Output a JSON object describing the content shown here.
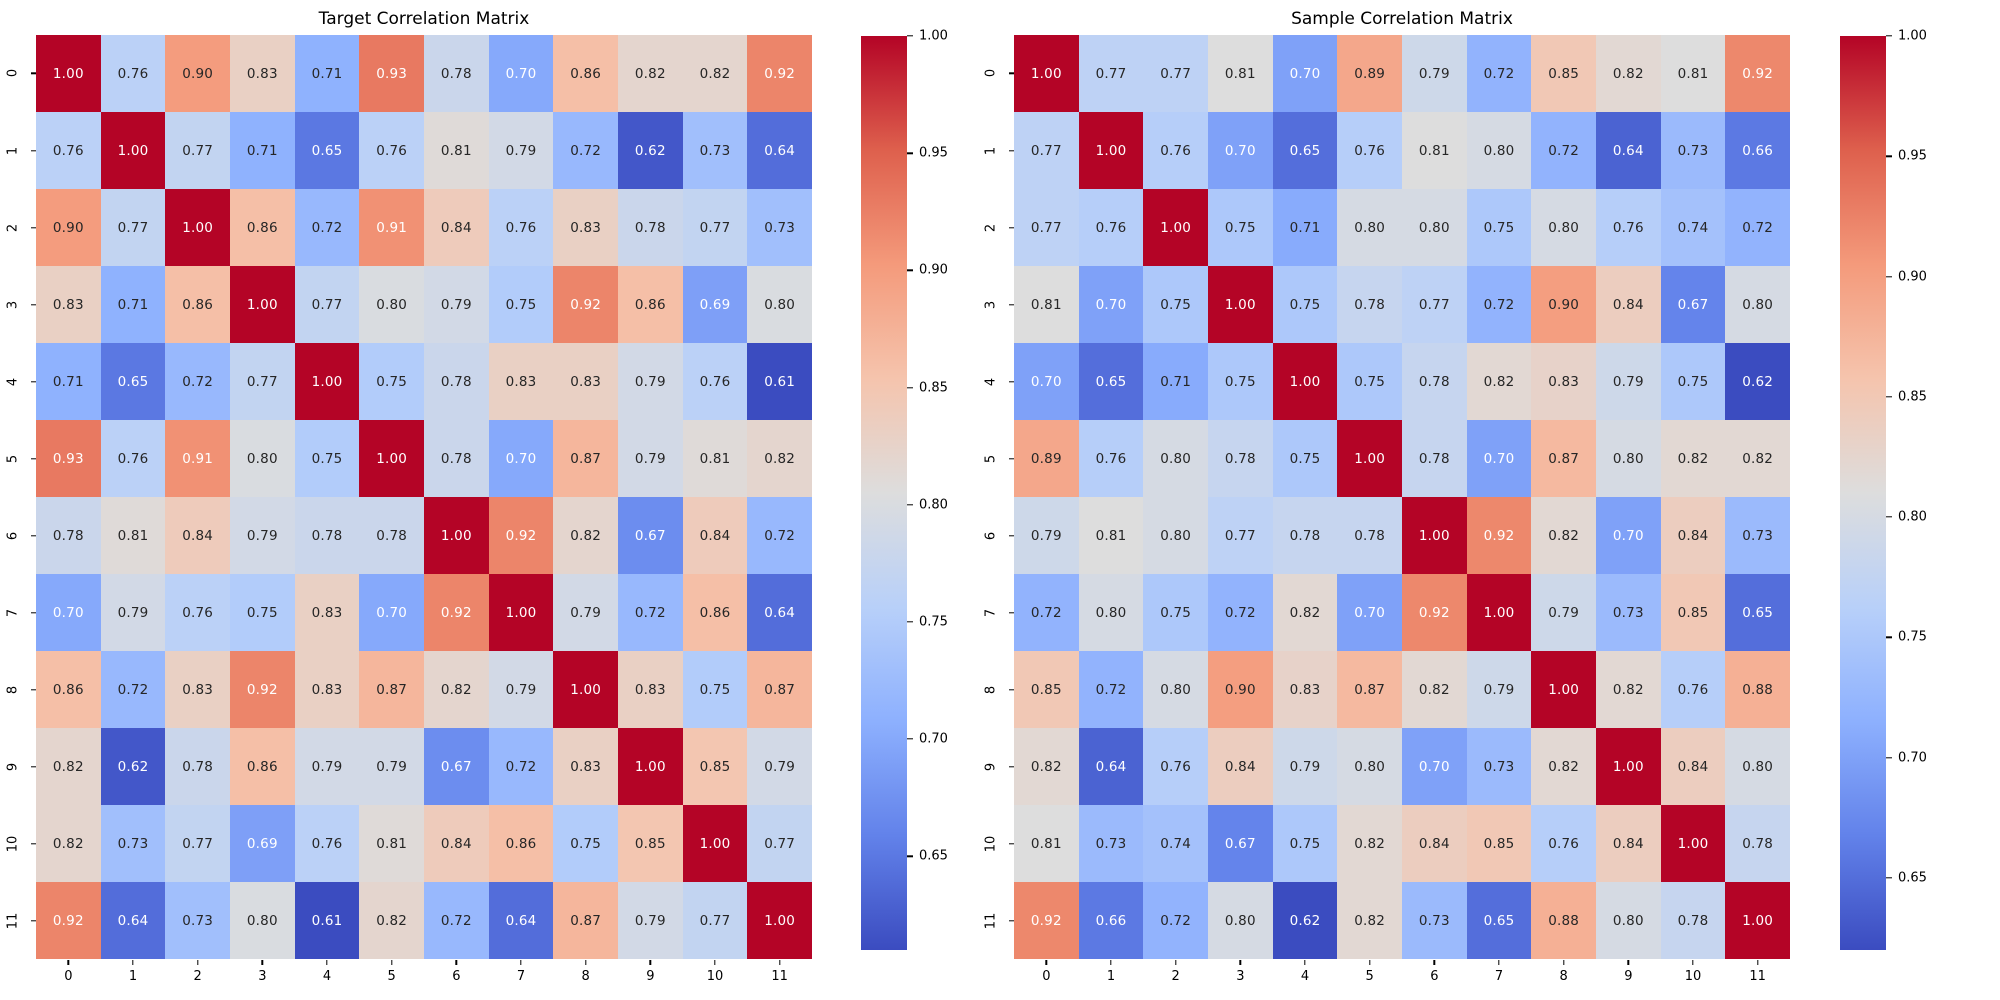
{
  "style": {
    "background": "#ffffff",
    "axis_text_color": "#000000",
    "annotation_dark": "#262626",
    "annotation_light": "#ffffff",
    "luminance_threshold": 0.408
  },
  "colormap": {
    "name": "coolwarm",
    "anchors": [
      "#3b4cc0",
      "#6282ea",
      "#8db0fe",
      "#b8d0f9",
      "#dddddd",
      "#f5c4ad",
      "#f49a7b",
      "#de604d",
      "#b40426"
    ]
  },
  "chart_data": [
    {
      "type": "heatmap",
      "title": "Target Correlation Matrix",
      "x_labels": [
        "0",
        "1",
        "2",
        "3",
        "4",
        "5",
        "6",
        "7",
        "8",
        "9",
        "10",
        "11"
      ],
      "y_labels": [
        "0",
        "1",
        "2",
        "3",
        "4",
        "5",
        "6",
        "7",
        "8",
        "9",
        "10",
        "11"
      ],
      "vmin": 0.61,
      "vmax": 1.0,
      "colorbar_ticks": [
        1.0,
        0.95,
        0.9,
        0.85,
        0.8,
        0.75,
        0.7,
        0.65
      ],
      "legend_position": "right-colorbar",
      "grid": false,
      "values": [
        [
          1.0,
          0.76,
          0.9,
          0.83,
          0.71,
          0.93,
          0.78,
          0.7,
          0.86,
          0.82,
          0.82,
          0.92
        ],
        [
          0.76,
          1.0,
          0.77,
          0.71,
          0.65,
          0.76,
          0.81,
          0.79,
          0.72,
          0.62,
          0.73,
          0.64
        ],
        [
          0.9,
          0.77,
          1.0,
          0.86,
          0.72,
          0.91,
          0.84,
          0.76,
          0.83,
          0.78,
          0.77,
          0.73
        ],
        [
          0.83,
          0.71,
          0.86,
          1.0,
          0.77,
          0.8,
          0.79,
          0.75,
          0.92,
          0.86,
          0.69,
          0.8
        ],
        [
          0.71,
          0.65,
          0.72,
          0.77,
          1.0,
          0.75,
          0.78,
          0.83,
          0.83,
          0.79,
          0.76,
          0.61
        ],
        [
          0.93,
          0.76,
          0.91,
          0.8,
          0.75,
          1.0,
          0.78,
          0.7,
          0.87,
          0.79,
          0.81,
          0.82
        ],
        [
          0.78,
          0.81,
          0.84,
          0.79,
          0.78,
          0.78,
          1.0,
          0.92,
          0.82,
          0.67,
          0.84,
          0.72
        ],
        [
          0.7,
          0.79,
          0.76,
          0.75,
          0.83,
          0.7,
          0.92,
          1.0,
          0.79,
          0.72,
          0.86,
          0.64
        ],
        [
          0.86,
          0.72,
          0.83,
          0.92,
          0.83,
          0.87,
          0.82,
          0.79,
          1.0,
          0.83,
          0.75,
          0.87
        ],
        [
          0.82,
          0.62,
          0.78,
          0.86,
          0.79,
          0.79,
          0.67,
          0.72,
          0.83,
          1.0,
          0.85,
          0.79
        ],
        [
          0.82,
          0.73,
          0.77,
          0.69,
          0.76,
          0.81,
          0.84,
          0.86,
          0.75,
          0.85,
          1.0,
          0.77
        ],
        [
          0.92,
          0.64,
          0.73,
          0.8,
          0.61,
          0.82,
          0.72,
          0.64,
          0.87,
          0.79,
          0.77,
          1.0
        ]
      ]
    },
    {
      "type": "heatmap",
      "title": "Sample Correlation Matrix",
      "x_labels": [
        "0",
        "1",
        "2",
        "3",
        "4",
        "5",
        "6",
        "7",
        "8",
        "9",
        "10",
        "11"
      ],
      "y_labels": [
        "0",
        "1",
        "2",
        "3",
        "4",
        "5",
        "6",
        "7",
        "8",
        "9",
        "10",
        "11"
      ],
      "vmin": 0.62,
      "vmax": 1.0,
      "colorbar_ticks": [
        1.0,
        0.95,
        0.9,
        0.85,
        0.8,
        0.75,
        0.7,
        0.65
      ],
      "legend_position": "right-colorbar",
      "grid": false,
      "values": [
        [
          1.0,
          0.77,
          0.77,
          0.81,
          0.7,
          0.89,
          0.79,
          0.72,
          0.85,
          0.82,
          0.81,
          0.92
        ],
        [
          0.77,
          1.0,
          0.76,
          0.7,
          0.65,
          0.76,
          0.81,
          0.8,
          0.72,
          0.64,
          0.73,
          0.66
        ],
        [
          0.77,
          0.76,
          1.0,
          0.75,
          0.71,
          0.8,
          0.8,
          0.75,
          0.8,
          0.76,
          0.74,
          0.72
        ],
        [
          0.81,
          0.7,
          0.75,
          1.0,
          0.75,
          0.78,
          0.77,
          0.72,
          0.9,
          0.84,
          0.67,
          0.8
        ],
        [
          0.7,
          0.65,
          0.71,
          0.75,
          1.0,
          0.75,
          0.78,
          0.82,
          0.83,
          0.79,
          0.75,
          0.62
        ],
        [
          0.89,
          0.76,
          0.8,
          0.78,
          0.75,
          1.0,
          0.78,
          0.7,
          0.87,
          0.8,
          0.82,
          0.82
        ],
        [
          0.79,
          0.81,
          0.8,
          0.77,
          0.78,
          0.78,
          1.0,
          0.92,
          0.82,
          0.7,
          0.84,
          0.73
        ],
        [
          0.72,
          0.8,
          0.75,
          0.72,
          0.82,
          0.7,
          0.92,
          1.0,
          0.79,
          0.73,
          0.85,
          0.65
        ],
        [
          0.85,
          0.72,
          0.8,
          0.9,
          0.83,
          0.87,
          0.82,
          0.79,
          1.0,
          0.82,
          0.76,
          0.88
        ],
        [
          0.82,
          0.64,
          0.76,
          0.84,
          0.79,
          0.8,
          0.7,
          0.73,
          0.82,
          1.0,
          0.84,
          0.8
        ],
        [
          0.81,
          0.73,
          0.74,
          0.67,
          0.75,
          0.82,
          0.84,
          0.85,
          0.76,
          0.84,
          1.0,
          0.78
        ],
        [
          0.92,
          0.66,
          0.72,
          0.8,
          0.62,
          0.82,
          0.73,
          0.65,
          0.88,
          0.8,
          0.78,
          1.0
        ]
      ]
    }
  ]
}
